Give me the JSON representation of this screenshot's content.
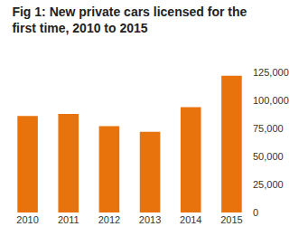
{
  "chart_data": {
    "type": "bar",
    "title": "Fig 1: New private cars licensed for the first time, 2010 to 2015",
    "categories": [
      "2010",
      "2011",
      "2012",
      "2013",
      "2014",
      "2015"
    ],
    "values": [
      86000,
      88000,
      77000,
      72000,
      94000,
      122000
    ],
    "color": "#e8730c",
    "ylim": [
      0,
      125000
    ],
    "yticks": [
      0,
      {
        "value": 25000,
        "label": "25,000"
      },
      {
        "value": 50000,
        "label": "50,000"
      },
      {
        "value": 75000,
        "label": "75,000"
      },
      {
        "value": 100000,
        "label": "100,000"
      },
      {
        "value": 125000,
        "label": "125,000"
      }
    ],
    "grid": false
  }
}
